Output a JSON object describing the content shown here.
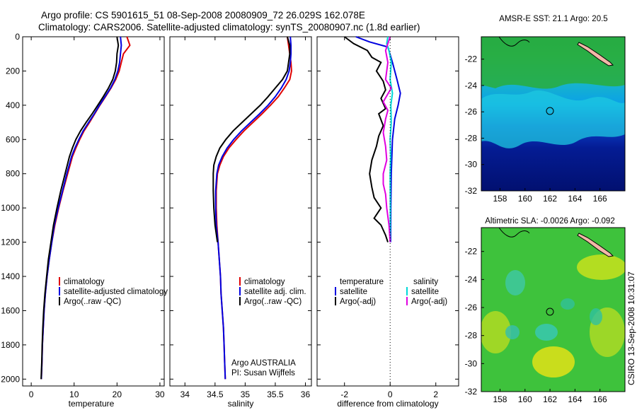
{
  "figure": {
    "title_line1": "Argo profile: CS 5901615_51 08-Sep-2008 20080909_72 26.029S 162.078E",
    "title_line2": "Climatology: CARS2006. Satellite-adjusted climatology: synTS_20080907.nc (1.8d earlier)",
    "credit_line1": "Argo AUSTRALIA",
    "credit_line2": "PI: Susan Wijffels",
    "stamp": "CSIRO 13-Sep-2008 10:31:07"
  },
  "colors": {
    "climatology": "#e00000",
    "satellite": "#0000e0",
    "argo": "#000000",
    "sal_satellite": "#00d8d8",
    "sal_argo": "#e000e0"
  },
  "chart_data": [
    {
      "type": "line",
      "id": "temperature",
      "xlabel": "temperature",
      "ylabel": "",
      "xlim": [
        -2,
        31
      ],
      "ylim": [
        2040,
        0
      ],
      "xticks": [
        0,
        10,
        20,
        30
      ],
      "yticks": [
        0,
        200,
        400,
        600,
        800,
        1000,
        1200,
        1400,
        1600,
        1800,
        2000
      ],
      "legend": [
        "climatology",
        "satellite-adjusted climatology",
        "Argo(..raw -QC)"
      ],
      "series": [
        {
          "name": "climatology",
          "color": "climatology",
          "points": [
            [
              22.3,
              0
            ],
            [
              23.0,
              50
            ],
            [
              21.5,
              100
            ],
            [
              21.0,
              150
            ],
            [
              20.5,
              200
            ],
            [
              19.7,
              250
            ],
            [
              18.6,
              300
            ],
            [
              17.3,
              350
            ],
            [
              16.0,
              400
            ],
            [
              14.8,
              450
            ],
            [
              13.6,
              500
            ],
            [
              12.3,
              550
            ],
            [
              11.3,
              600
            ],
            [
              10.4,
              650
            ],
            [
              9.6,
              700
            ],
            [
              8.5,
              800
            ],
            [
              7.4,
              900
            ],
            [
              6.4,
              1000
            ],
            [
              5.5,
              1100
            ],
            [
              4.8,
              1200
            ],
            [
              4.2,
              1300
            ],
            [
              3.7,
              1400
            ],
            [
              3.3,
              1500
            ],
            [
              3.0,
              1600
            ],
            [
              2.8,
              1700
            ],
            [
              2.6,
              1800
            ],
            [
              2.5,
              1900
            ],
            [
              2.35,
              2000
            ]
          ]
        },
        {
          "name": "satellite-adjusted climatology",
          "color": "satellite",
          "points": [
            [
              20.8,
              0
            ],
            [
              21.0,
              50
            ],
            [
              20.8,
              100
            ],
            [
              20.6,
              150
            ],
            [
              20.2,
              200
            ],
            [
              19.5,
              250
            ],
            [
              18.5,
              300
            ],
            [
              17.2,
              350
            ],
            [
              15.9,
              400
            ],
            [
              14.7,
              450
            ],
            [
              13.4,
              500
            ],
            [
              12.1,
              550
            ],
            [
              11.1,
              600
            ],
            [
              10.2,
              650
            ],
            [
              9.4,
              700
            ],
            [
              8.3,
              800
            ],
            [
              7.3,
              900
            ],
            [
              6.3,
              1000
            ],
            [
              5.4,
              1100
            ],
            [
              4.8,
              1200
            ],
            [
              4.2,
              1300
            ],
            [
              3.7,
              1400
            ],
            [
              3.3,
              1500
            ],
            [
              3.0,
              1600
            ],
            [
              2.8,
              1700
            ],
            [
              2.6,
              1800
            ],
            [
              2.5,
              1900
            ],
            [
              2.35,
              2000
            ]
          ]
        },
        {
          "name": "Argo(..raw -QC)",
          "color": "argo",
          "points": [
            [
              20.0,
              0
            ],
            [
              20.3,
              50
            ],
            [
              20.0,
              100
            ],
            [
              19.9,
              150
            ],
            [
              19.6,
              200
            ],
            [
              19.0,
              250
            ],
            [
              18.0,
              300
            ],
            [
              16.8,
              350
            ],
            [
              15.5,
              400
            ],
            [
              14.2,
              450
            ],
            [
              12.8,
              500
            ],
            [
              11.5,
              550
            ],
            [
              10.4,
              600
            ],
            [
              9.6,
              650
            ],
            [
              8.9,
              700
            ],
            [
              7.9,
              800
            ],
            [
              6.9,
              900
            ],
            [
              6.0,
              1000
            ],
            [
              5.2,
              1100
            ],
            [
              4.6,
              1200
            ],
            [
              4.0,
              1300
            ],
            [
              3.6,
              1400
            ],
            [
              3.2,
              1500
            ],
            [
              2.9,
              1600
            ],
            [
              2.7,
              1700
            ],
            [
              2.55,
              1800
            ],
            [
              2.45,
              1900
            ],
            [
              2.3,
              2000
            ]
          ]
        }
      ]
    },
    {
      "type": "line",
      "id": "salinity",
      "xlabel": "salinity",
      "ylabel": "",
      "xlim": [
        33.75,
        36.1
      ],
      "ylim": [
        2040,
        0
      ],
      "xticks": [
        34,
        34.5,
        35,
        35.5,
        36
      ],
      "yticks": [],
      "legend": [
        "climatology",
        "satellite adj. clim.",
        "Argo(..raw -QC)"
      ],
      "series": [
        {
          "name": "climatology",
          "color": "climatology",
          "points": [
            [
              35.7,
              0
            ],
            [
              35.72,
              50
            ],
            [
              35.74,
              100
            ],
            [
              35.76,
              150
            ],
            [
              35.77,
              200
            ],
            [
              35.74,
              250
            ],
            [
              35.65,
              300
            ],
            [
              35.55,
              350
            ],
            [
              35.42,
              400
            ],
            [
              35.28,
              450
            ],
            [
              35.13,
              500
            ],
            [
              34.98,
              550
            ],
            [
              34.85,
              600
            ],
            [
              34.73,
              650
            ],
            [
              34.64,
              700
            ],
            [
              34.58,
              750
            ],
            [
              34.54,
              800
            ],
            [
              34.52,
              900
            ],
            [
              34.52,
              1000
            ],
            [
              34.53,
              1100
            ],
            [
              34.55,
              1200
            ],
            [
              34.57,
              1300
            ],
            [
              34.59,
              1400
            ],
            [
              34.6,
              1500
            ],
            [
              34.62,
              1600
            ],
            [
              34.64,
              1700
            ],
            [
              34.65,
              1800
            ],
            [
              34.66,
              1900
            ],
            [
              34.67,
              2000
            ]
          ]
        },
        {
          "name": "satellite adj. clim.",
          "color": "satellite",
          "points": [
            [
              35.75,
              0
            ],
            [
              35.76,
              50
            ],
            [
              35.76,
              100
            ],
            [
              35.75,
              150
            ],
            [
              35.73,
              200
            ],
            [
              35.68,
              250
            ],
            [
              35.6,
              300
            ],
            [
              35.5,
              350
            ],
            [
              35.38,
              400
            ],
            [
              35.24,
              450
            ],
            [
              35.09,
              500
            ],
            [
              34.94,
              550
            ],
            [
              34.81,
              600
            ],
            [
              34.7,
              650
            ],
            [
              34.62,
              700
            ],
            [
              34.56,
              750
            ],
            [
              34.53,
              800
            ],
            [
              34.51,
              900
            ],
            [
              34.51,
              1000
            ],
            [
              34.52,
              1100
            ],
            [
              34.55,
              1200
            ],
            [
              34.57,
              1300
            ],
            [
              34.59,
              1400
            ],
            [
              34.6,
              1500
            ],
            [
              34.62,
              1600
            ],
            [
              34.64,
              1700
            ],
            [
              34.65,
              1800
            ],
            [
              34.66,
              1900
            ],
            [
              34.67,
              2000
            ]
          ]
        },
        {
          "name": "Argo(..raw -QC)",
          "color": "argo",
          "points": [
            [
              35.7,
              0
            ],
            [
              35.74,
              50
            ],
            [
              35.74,
              100
            ],
            [
              35.72,
              150
            ],
            [
              35.7,
              200
            ],
            [
              35.62,
              250
            ],
            [
              35.5,
              300
            ],
            [
              35.38,
              350
            ],
            [
              35.25,
              400
            ],
            [
              35.1,
              450
            ],
            [
              34.95,
              500
            ],
            [
              34.8,
              550
            ],
            [
              34.68,
              600
            ],
            [
              34.58,
              650
            ],
            [
              34.52,
              700
            ],
            [
              34.48,
              750
            ],
            [
              34.47,
              800
            ],
            [
              34.47,
              900
            ],
            [
              34.48,
              1000
            ],
            [
              34.5,
              1100
            ],
            [
              34.54,
              1200
            ]
          ]
        }
      ]
    },
    {
      "type": "line",
      "id": "difference",
      "xlabel": "difference from climatology",
      "ylabel": "",
      "xlim": [
        -3.2,
        3.0
      ],
      "ylim": [
        2040,
        0
      ],
      "xticks": [
        -2,
        0,
        2
      ],
      "yticks": [],
      "legend_headers": [
        "temperature",
        "salinity"
      ],
      "legend": [
        "satellite",
        "Argo(-adj)",
        "satellite",
        "Argo(-adj)"
      ],
      "series": [
        {
          "name": "satellite",
          "group": "temperature",
          "color": "satellite",
          "points": [
            [
              -1.5,
              0
            ],
            [
              -0.9,
              30
            ],
            [
              -0.1,
              60
            ],
            [
              0.1,
              150
            ],
            [
              0.3,
              250
            ],
            [
              0.45,
              330
            ],
            [
              0.35,
              400
            ],
            [
              0.2,
              480
            ],
            [
              0.1,
              600
            ],
            [
              0.05,
              800
            ],
            [
              0.03,
              1000
            ],
            [
              0.02,
              1200
            ]
          ]
        },
        {
          "name": "Argo(-adj)",
          "group": "temperature",
          "color": "argo",
          "points": [
            [
              -2.0,
              0
            ],
            [
              -1.6,
              40
            ],
            [
              -1.0,
              80
            ],
            [
              -0.8,
              120
            ],
            [
              -0.4,
              150
            ],
            [
              -0.6,
              200
            ],
            [
              -0.3,
              260
            ],
            [
              -0.2,
              310
            ],
            [
              -0.4,
              360
            ],
            [
              -0.2,
              420
            ],
            [
              -0.5,
              450
            ],
            [
              -0.3,
              520
            ],
            [
              -0.5,
              580
            ],
            [
              -0.6,
              640
            ],
            [
              -0.8,
              720
            ],
            [
              -0.9,
              800
            ],
            [
              -0.8,
              880
            ],
            [
              -0.7,
              940
            ],
            [
              -0.4,
              1000
            ],
            [
              -0.7,
              1060
            ],
            [
              -0.4,
              1100
            ],
            [
              -0.2,
              1160
            ],
            [
              -0.1,
              1200
            ]
          ]
        },
        {
          "name": "satellite",
          "group": "salinity",
          "color": "sal_satellite",
          "points": [
            [
              -0.1,
              0
            ],
            [
              -0.15,
              40
            ],
            [
              -0.05,
              80
            ],
            [
              0.05,
              150
            ],
            [
              0.0,
              250
            ],
            [
              0.1,
              330
            ],
            [
              0.03,
              400
            ],
            [
              0.05,
              500
            ],
            [
              0.0,
              600
            ],
            [
              0.02,
              700
            ],
            [
              0.0,
              800
            ],
            [
              0.01,
              1000
            ],
            [
              0.0,
              1200
            ]
          ]
        },
        {
          "name": "Argo(-adj)",
          "group": "salinity",
          "color": "sal_argo",
          "points": [
            [
              0.0,
              0
            ],
            [
              -0.1,
              40
            ],
            [
              -0.2,
              80
            ],
            [
              -0.1,
              150
            ],
            [
              -0.2,
              250
            ],
            [
              0.05,
              300
            ],
            [
              -0.3,
              380
            ],
            [
              -0.1,
              430
            ],
            [
              -0.2,
              480
            ],
            [
              -0.3,
              560
            ],
            [
              -0.2,
              640
            ],
            [
              -0.15,
              720
            ],
            [
              -0.3,
              800
            ],
            [
              -0.3,
              860
            ],
            [
              -0.2,
              920
            ],
            [
              -0.15,
              1000
            ],
            [
              -0.05,
              1100
            ],
            [
              0.0,
              1200
            ]
          ]
        }
      ]
    },
    {
      "type": "heatmap",
      "id": "sst_map",
      "title": "AMSR-E SST: 21.1 Argo: 20.5",
      "xlim": [
        156.5,
        168
      ],
      "ylim": [
        -32,
        -20.3
      ],
      "xticks": [
        158,
        160,
        162,
        164,
        166
      ],
      "yticks": [
        -22,
        -24,
        -26,
        -28,
        -30,
        -32
      ],
      "marker": {
        "lon": 162.078,
        "lat": -26.029
      }
    },
    {
      "type": "heatmap",
      "id": "sla_map",
      "title": "Altimetric SLA: -0.0026 Argo: -0.092",
      "xlim": [
        156.5,
        168
      ],
      "ylim": [
        -32,
        -20.3
      ],
      "xticks": [
        158,
        160,
        162,
        164,
        166
      ],
      "yticks": [
        -22,
        -24,
        -26,
        -28,
        -30,
        -32
      ],
      "marker": {
        "lon": 162.078,
        "lat": -26.029
      }
    }
  ]
}
